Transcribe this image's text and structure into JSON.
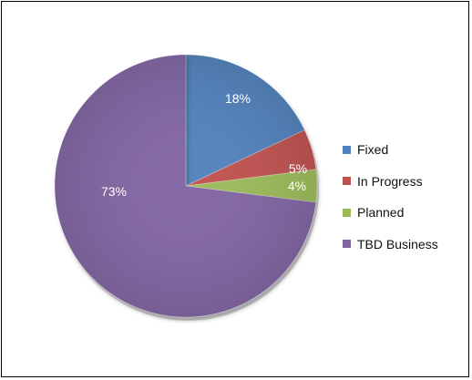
{
  "chart_data": {
    "type": "pie",
    "title": "",
    "categories": [
      "Fixed",
      "In Progress",
      "Planned",
      "TBD Business"
    ],
    "values": [
      18,
      5,
      4,
      73
    ],
    "data_labels": [
      "18%",
      "5%",
      "4%",
      "73%"
    ],
    "colors": [
      "#4f81bd",
      "#c0504d",
      "#9bbb59",
      "#8064a2"
    ],
    "legend_position": "right",
    "legend": [
      {
        "label": "Fixed",
        "color": "#4f81bd"
      },
      {
        "label": "In Progress",
        "color": "#c0504d"
      },
      {
        "label": "Planned",
        "color": "#9bbb59"
      },
      {
        "label": "TBD Business",
        "color": "#8064a2"
      }
    ]
  }
}
